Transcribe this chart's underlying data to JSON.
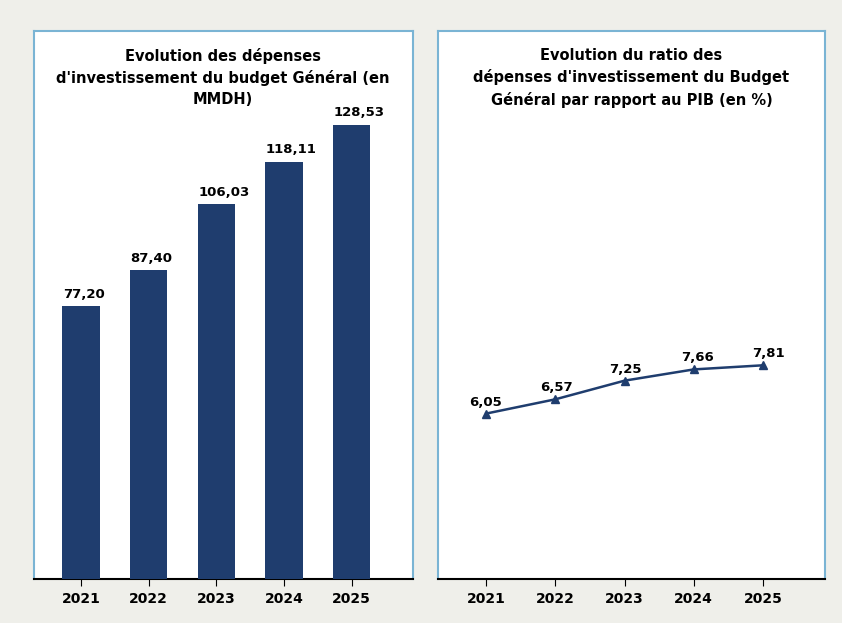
{
  "bar_years": [
    2021,
    2022,
    2023,
    2024,
    2025
  ],
  "bar_values": [
    77.2,
    87.4,
    106.03,
    118.11,
    128.53
  ],
  "bar_labels": [
    "77,20",
    "87,40",
    "106,03",
    "118,11",
    "128,53"
  ],
  "bar_color": "#1f3d6e",
  "bar_title": "Evolution des dépenses\nd'investissement du budget Général (en\nMMDH)",
  "line_years": [
    2021,
    2022,
    2023,
    2024,
    2025
  ],
  "line_values": [
    6.05,
    6.57,
    7.25,
    7.66,
    7.81
  ],
  "line_labels": [
    "6,05",
    "6,57",
    "7,25",
    "7,66",
    "7,81"
  ],
  "line_color": "#1f3d6e",
  "line_title": "Evolution du ratio des\ndépenses d'investissement du Budget\nGénéral par rapport au PIB (en %)",
  "background_color": "#efefea",
  "panel_background": "#ffffff",
  "border_color": "#7ab4d4",
  "title_fontsize": 10.5,
  "label_fontsize": 9.5,
  "tick_fontsize": 10,
  "bar_ylim": [
    0,
    155
  ],
  "line_ylim": [
    0,
    20
  ],
  "line_xlim": [
    2020.3,
    2025.9
  ],
  "bar_xlim": [
    2020.3,
    2025.9
  ]
}
